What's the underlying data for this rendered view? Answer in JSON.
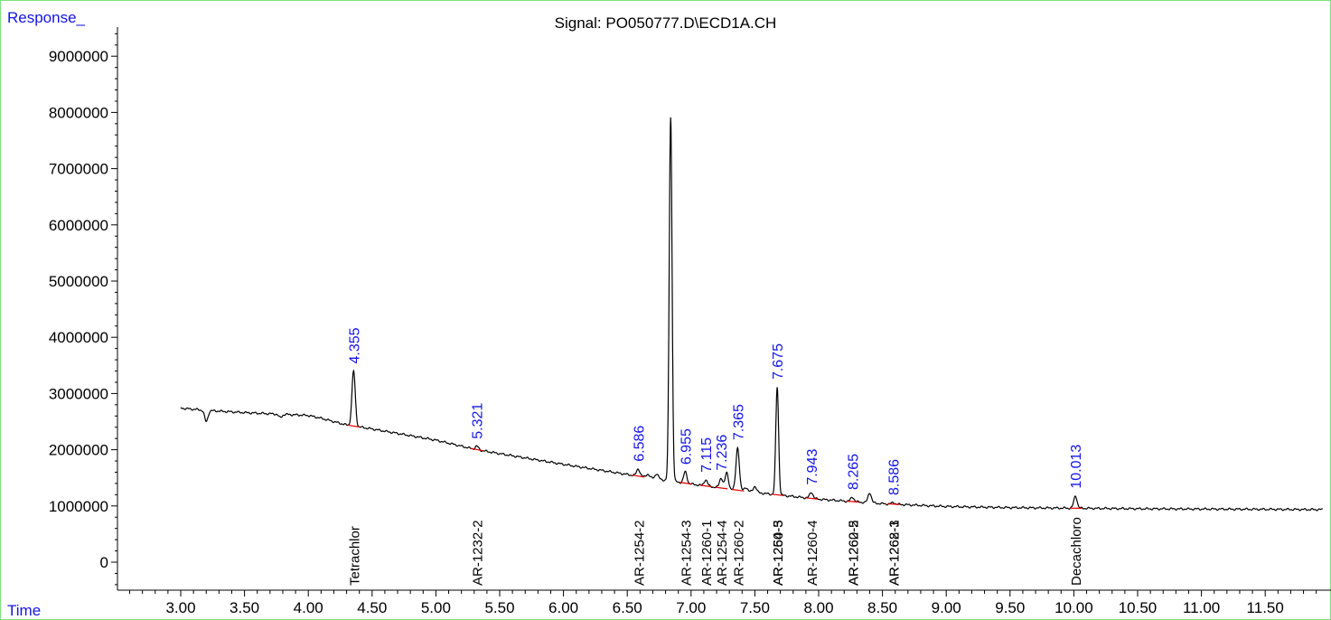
{
  "chart_data": {
    "type": "line",
    "title": "Signal: PO050777.D\\ECD1A.CH",
    "ylabel": "Response_",
    "xlabel": "Time",
    "xlim": [
      2.55,
      11.95
    ],
    "ylim": [
      -500000,
      9500000
    ],
    "x_ticks": [
      "3.00",
      "3.50",
      "4.00",
      "4.50",
      "5.00",
      "5.50",
      "6.00",
      "6.50",
      "7.00",
      "7.50",
      "8.00",
      "8.50",
      "9.00",
      "9.50",
      "10.00",
      "10.50",
      "11.00",
      "11.50"
    ],
    "y_ticks": [
      "0",
      "1000000",
      "2000000",
      "3000000",
      "4000000",
      "5000000",
      "6000000",
      "7000000",
      "8000000",
      "9000000"
    ],
    "baseline": [
      [
        3.0,
        2740000
      ],
      [
        3.1,
        2720000
      ],
      [
        3.2,
        2700000
      ],
      [
        3.5,
        2660000
      ],
      [
        3.8,
        2630000
      ],
      [
        4.0,
        2610000
      ],
      [
        4.1,
        2560000
      ],
      [
        4.3,
        2440000
      ],
      [
        4.5,
        2370000
      ],
      [
        5.0,
        2170000
      ],
      [
        5.3,
        2010000
      ],
      [
        5.5,
        1930000
      ],
      [
        6.0,
        1740000
      ],
      [
        6.5,
        1560000
      ],
      [
        7.0,
        1390000
      ],
      [
        7.5,
        1240000
      ],
      [
        8.0,
        1120000
      ],
      [
        8.5,
        1040000
      ],
      [
        9.0,
        990000
      ],
      [
        9.5,
        970000
      ],
      [
        10.0,
        960000
      ],
      [
        10.5,
        950000
      ],
      [
        11.0,
        945000
      ],
      [
        11.5,
        940000
      ],
      [
        11.95,
        935000
      ]
    ],
    "peaks": [
      {
        "rt": 3.2,
        "height": -200000
      },
      {
        "rt": 3.78,
        "height": -60000
      },
      {
        "rt": 4.355,
        "height": 980000
      },
      {
        "rt": 5.321,
        "height": 60000
      },
      {
        "rt": 6.586,
        "height": 130000
      },
      {
        "rt": 6.66,
        "height": 60000
      },
      {
        "rt": 6.73,
        "height": 90000
      },
      {
        "rt": 6.84,
        "height": 6480000
      },
      {
        "rt": 6.955,
        "height": 200000
      },
      {
        "rt": 7.115,
        "height": 110000
      },
      {
        "rt": 7.236,
        "height": 180000
      },
      {
        "rt": 7.28,
        "height": 280000
      },
      {
        "rt": 7.365,
        "height": 760000
      },
      {
        "rt": 7.43,
        "height": 70000
      },
      {
        "rt": 7.5,
        "height": 110000
      },
      {
        "rt": 7.675,
        "height": 1920000
      },
      {
        "rt": 7.943,
        "height": 110000
      },
      {
        "rt": 8.265,
        "height": 80000
      },
      {
        "rt": 8.4,
        "height": 180000
      },
      {
        "rt": 8.586,
        "height": 30000
      },
      {
        "rt": 10.013,
        "height": 220000
      }
    ],
    "retention_time_labels": [
      "4.355",
      "5.321",
      "6.586",
      "6.955",
      "7.115",
      "7.236",
      "7.365",
      "7.675",
      "7.943",
      "8.265",
      "8.586",
      "10.013"
    ],
    "compound_labels": [
      {
        "rt": 4.355,
        "name": "Tetrachlor"
      },
      {
        "rt": 5.321,
        "name": "AR-1232-2"
      },
      {
        "rt": 6.586,
        "name": "AR-1254-2"
      },
      {
        "rt": 6.955,
        "name": "AR-1254-3"
      },
      {
        "rt": 7.115,
        "name": "AR-1260-1"
      },
      {
        "rt": 7.236,
        "name": "AR-1254-4"
      },
      {
        "rt": 7.365,
        "name": "AR-1260-2"
      },
      {
        "rt": 7.675,
        "name": "AR-1254-5"
      },
      {
        "rt": 7.675,
        "name": "AR-1260-3"
      },
      {
        "rt": 7.943,
        "name": "AR-1260-4"
      },
      {
        "rt": 8.265,
        "name": "AR-1262-2"
      },
      {
        "rt": 8.265,
        "name": "AR-1260-5"
      },
      {
        "rt": 8.586,
        "name": "AR-1262-3"
      },
      {
        "rt": 8.586,
        "name": "AR-1268-1"
      },
      {
        "rt": 10.013,
        "name": "Decachloro"
      }
    ],
    "colors": {
      "trace": "#000000",
      "rt_label": "#1414e6",
      "integration_mark": "#e00000",
      "frame": "#7fe07f"
    }
  }
}
